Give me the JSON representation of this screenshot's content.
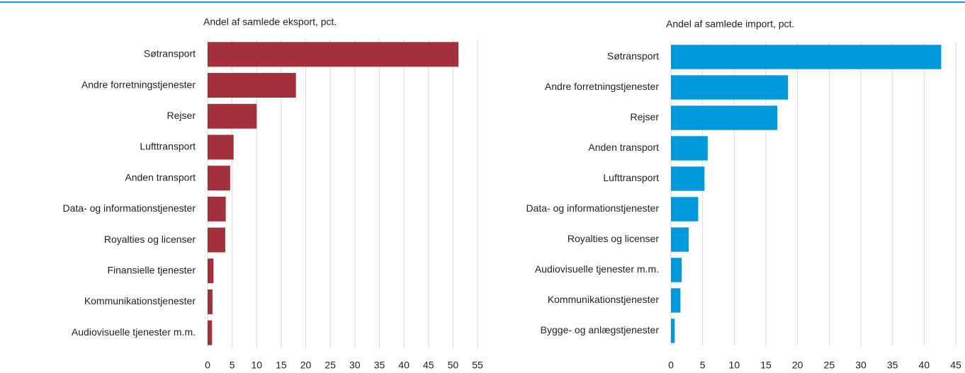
{
  "chart_data": [
    {
      "type": "barh",
      "title": "Andel af samlede eksport, pct.",
      "categories": [
        "Søtransport",
        "Andre forretningstjenester",
        "Rejser",
        "Lufttransport",
        "Anden transport",
        "Data- og informationstjenester",
        "Royalties og licenser",
        "Finansielle tjenester",
        "Kommunikationstjenester",
        "Audiovisuelle tjenester m.m."
      ],
      "values": [
        51.1,
        18.0,
        10.0,
        5.3,
        4.6,
        3.7,
        3.6,
        1.2,
        1.0,
        0.9
      ],
      "color": "#a4303b",
      "xlim": [
        0,
        55
      ],
      "xticks": [
        0,
        5,
        10,
        15,
        20,
        25,
        30,
        35,
        40,
        45,
        50,
        55
      ],
      "grid": true
    },
    {
      "type": "barh",
      "title": "Andel af samlede import, pct.",
      "categories": [
        "Søtransport",
        "Andre forretningstjenester",
        "Rejser",
        "Anden transport",
        "Lufttransport",
        "Data- og informationstjenester",
        "Royalties og licenser",
        "Audiovisuelle tjenester m.m.",
        "Kommunikationstjenester",
        "Bygge- og anlægstjenester"
      ],
      "values": [
        42.7,
        18.5,
        16.8,
        5.8,
        5.3,
        4.3,
        2.8,
        1.7,
        1.5,
        0.6
      ],
      "color": "#0099dc",
      "xlim": [
        0,
        45
      ],
      "xticks": [
        0,
        5,
        10,
        15,
        20,
        25,
        30,
        35,
        40,
        45
      ],
      "grid": true
    }
  ]
}
